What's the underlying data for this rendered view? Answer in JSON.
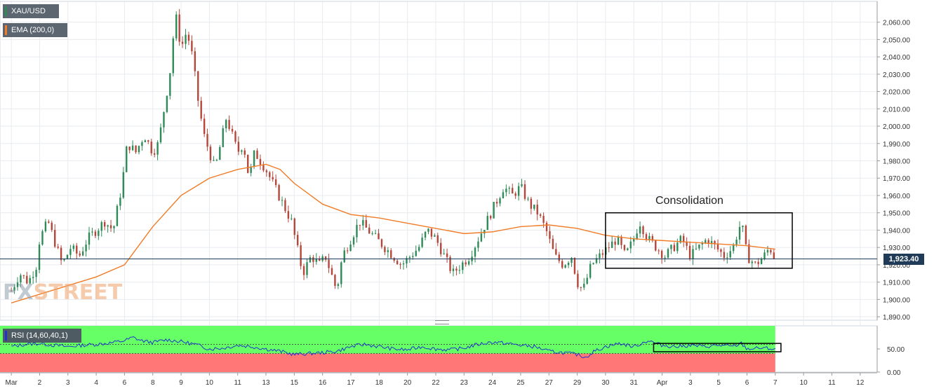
{
  "chart_data": {
    "type": "candlestick",
    "symbol": "XAU/USD",
    "indicator": "EMA (200,0)",
    "annotation": "Consolidation",
    "last_price": "1,923.40",
    "ylim": [
      1888,
      2072
    ],
    "y_ticks": [
      "1,890.00",
      "1,900.00",
      "1,910.00",
      "1,920.00",
      "1,930.00",
      "1,940.00",
      "1,950.00",
      "1,960.00",
      "1,970.00",
      "1,980.00",
      "1,990.00",
      "2,000.00",
      "2,010.00",
      "2,020.00",
      "2,030.00",
      "2,040.00",
      "2,050.00",
      "2,060.00"
    ],
    "x_ticks": [
      "Mar",
      "2",
      "3",
      "4",
      "6",
      "8",
      "9",
      "10",
      "11",
      "13",
      "15",
      "16",
      "17",
      "18",
      "20",
      "22",
      "23",
      "24",
      "25",
      "27",
      "29",
      "30",
      "31",
      "Apr",
      "3",
      "5",
      "6",
      "7",
      "10",
      "11",
      "12"
    ],
    "x_tick_values": [
      0,
      1,
      2,
      3,
      4,
      5,
      6,
      7,
      8,
      9,
      10,
      11,
      12,
      13,
      14,
      15,
      16,
      17,
      18,
      19,
      20,
      21,
      22,
      23,
      24,
      25,
      26,
      27,
      28,
      29,
      30
    ],
    "data_end": 27,
    "price_path": [
      [
        0.0,
        1905
      ],
      [
        0.3,
        1915
      ],
      [
        0.6,
        1910
      ],
      [
        0.9,
        1920
      ],
      [
        1.0,
        1935
      ],
      [
        1.3,
        1945
      ],
      [
        1.5,
        1935
      ],
      [
        1.8,
        1920
      ],
      [
        2.1,
        1930
      ],
      [
        2.4,
        1925
      ],
      [
        2.7,
        1935
      ],
      [
        3.0,
        1940
      ],
      [
        3.3,
        1945
      ],
      [
        3.6,
        1940
      ],
      [
        3.9,
        1965
      ],
      [
        4.1,
        1990
      ],
      [
        4.4,
        1985
      ],
      [
        4.7,
        1995
      ],
      [
        5.0,
        1985
      ],
      [
        5.2,
        1990
      ],
      [
        5.4,
        2010
      ],
      [
        5.6,
        2030
      ],
      [
        5.8,
        2065
      ],
      [
        6.0,
        2045
      ],
      [
        6.2,
        2055
      ],
      [
        6.4,
        2040
      ],
      [
        6.6,
        2015
      ],
      [
        6.8,
        1995
      ],
      [
        7.0,
        1985
      ],
      [
        7.2,
        1975
      ],
      [
        7.4,
        1990
      ],
      [
        7.6,
        2005
      ],
      [
        7.8,
        1995
      ],
      [
        8.0,
        1985
      ],
      [
        8.2,
        1990
      ],
      [
        8.4,
        1970
      ],
      [
        8.6,
        1985
      ],
      [
        8.8,
        1980
      ],
      [
        9.0,
        1975
      ],
      [
        9.3,
        1965
      ],
      [
        9.6,
        1955
      ],
      [
        9.9,
        1945
      ],
      [
        10.1,
        1930
      ],
      [
        10.3,
        1915
      ],
      [
        10.6,
        1925
      ],
      [
        10.9,
        1920
      ],
      [
        11.1,
        1925
      ],
      [
        11.3,
        1915
      ],
      [
        11.5,
        1905
      ],
      [
        11.7,
        1925
      ],
      [
        12.0,
        1935
      ],
      [
        12.3,
        1945
      ],
      [
        12.6,
        1940
      ],
      [
        12.9,
        1935
      ],
      [
        13.2,
        1930
      ],
      [
        13.5,
        1925
      ],
      [
        13.8,
        1920
      ],
      [
        14.1,
        1925
      ],
      [
        14.4,
        1930
      ],
      [
        14.7,
        1940
      ],
      [
        15.0,
        1935
      ],
      [
        15.3,
        1925
      ],
      [
        15.6,
        1915
      ],
      [
        15.9,
        1920
      ],
      [
        16.2,
        1925
      ],
      [
        16.5,
        1935
      ],
      [
        16.8,
        1945
      ],
      [
        17.1,
        1955
      ],
      [
        17.4,
        1965
      ],
      [
        17.7,
        1960
      ],
      [
        18.0,
        1965
      ],
      [
        18.3,
        1955
      ],
      [
        18.6,
        1950
      ],
      [
        18.9,
        1940
      ],
      [
        19.2,
        1925
      ],
      [
        19.5,
        1920
      ],
      [
        19.8,
        1925
      ],
      [
        20.0,
        1910
      ],
      [
        20.2,
        1905
      ],
      [
        20.5,
        1920
      ],
      [
        20.8,
        1925
      ],
      [
        21.1,
        1930
      ],
      [
        21.4,
        1935
      ],
      [
        21.7,
        1925
      ],
      [
        22.0,
        1935
      ],
      [
        22.2,
        1945
      ],
      [
        22.5,
        1935
      ],
      [
        22.8,
        1930
      ],
      [
        23.1,
        1925
      ],
      [
        23.4,
        1930
      ],
      [
        23.7,
        1935
      ],
      [
        24.0,
        1925
      ],
      [
        24.3,
        1930
      ],
      [
        24.6,
        1935
      ],
      [
        24.9,
        1930
      ],
      [
        25.2,
        1925
      ],
      [
        25.5,
        1930
      ],
      [
        25.8,
        1945
      ],
      [
        26.0,
        1925
      ],
      [
        26.3,
        1920
      ],
      [
        26.6,
        1925
      ],
      [
        26.8,
        1930
      ],
      [
        27.0,
        1923.4
      ]
    ],
    "ema_path": [
      [
        0.0,
        1898
      ],
      [
        1.0,
        1903
      ],
      [
        2.0,
        1908
      ],
      [
        3.0,
        1913
      ],
      [
        4.0,
        1920
      ],
      [
        5.0,
        1942
      ],
      [
        6.0,
        1960
      ],
      [
        7.0,
        1970
      ],
      [
        8.0,
        1975
      ],
      [
        9.0,
        1978
      ],
      [
        9.5,
        1975
      ],
      [
        10.0,
        1967
      ],
      [
        11.0,
        1955
      ],
      [
        12.0,
        1949
      ],
      [
        13.0,
        1947
      ],
      [
        14.0,
        1944
      ],
      [
        15.0,
        1941
      ],
      [
        16.0,
        1938
      ],
      [
        17.0,
        1939
      ],
      [
        18.0,
        1942
      ],
      [
        19.0,
        1943
      ],
      [
        20.0,
        1941
      ],
      [
        21.0,
        1937
      ],
      [
        22.0,
        1935
      ],
      [
        23.0,
        1934
      ],
      [
        24.0,
        1933
      ],
      [
        25.0,
        1932
      ],
      [
        26.0,
        1931
      ],
      [
        27.0,
        1929
      ]
    ],
    "consolidation_box": {
      "x_start": 21.0,
      "x_end": 27.6,
      "y_high": 1950,
      "y_low": 1918
    },
    "rsi": {
      "label": "RSI (14,60,40,1)",
      "ylim": [
        0,
        100
      ],
      "y_ticks": [
        "0.00",
        "50.00"
      ],
      "overbought": 60,
      "oversold": 40,
      "upper_zone_color": "#66ff66",
      "lower_zone_color": "#ff7777",
      "path": [
        [
          0.0,
          55
        ],
        [
          0.5,
          60
        ],
        [
          1.0,
          62
        ],
        [
          1.5,
          58
        ],
        [
          2.0,
          55
        ],
        [
          2.5,
          58
        ],
        [
          3.0,
          60
        ],
        [
          3.5,
          63
        ],
        [
          4.0,
          68
        ],
        [
          4.3,
          75
        ],
        [
          4.6,
          68
        ],
        [
          5.0,
          64
        ],
        [
          5.5,
          70
        ],
        [
          6.0,
          66
        ],
        [
          6.5,
          60
        ],
        [
          7.0,
          50
        ],
        [
          7.5,
          52
        ],
        [
          8.0,
          58
        ],
        [
          8.5,
          55
        ],
        [
          9.0,
          50
        ],
        [
          9.5,
          45
        ],
        [
          10.0,
          38
        ],
        [
          10.5,
          40
        ],
        [
          11.0,
          42
        ],
        [
          11.5,
          45
        ],
        [
          12.0,
          55
        ],
        [
          12.5,
          60
        ],
        [
          13.0,
          55
        ],
        [
          13.5,
          50
        ],
        [
          14.0,
          48
        ],
        [
          14.5,
          55
        ],
        [
          15.0,
          50
        ],
        [
          15.5,
          48
        ],
        [
          16.0,
          52
        ],
        [
          16.5,
          60
        ],
        [
          17.0,
          65
        ],
        [
          17.5,
          62
        ],
        [
          18.0,
          58
        ],
        [
          18.5,
          55
        ],
        [
          19.0,
          45
        ],
        [
          19.5,
          42
        ],
        [
          20.0,
          38
        ],
        [
          20.3,
          32
        ],
        [
          20.6,
          45
        ],
        [
          21.0,
          55
        ],
        [
          21.5,
          62
        ],
        [
          22.0,
          55
        ],
        [
          22.5,
          68
        ],
        [
          23.0,
          58
        ],
        [
          23.5,
          55
        ],
        [
          24.0,
          58
        ],
        [
          24.5,
          55
        ],
        [
          25.0,
          58
        ],
        [
          25.5,
          55
        ],
        [
          25.8,
          62
        ],
        [
          26.0,
          50
        ],
        [
          26.5,
          52
        ],
        [
          27.0,
          50
        ]
      ],
      "box": {
        "x_start": 22.7,
        "x_end": 27.2,
        "y_high": 62,
        "y_low": 44
      }
    }
  },
  "colors": {
    "candle_up": "#2e8b57",
    "candle_down": "#b5463a",
    "ema": "#f07c28",
    "rsi_line": "#2233cc",
    "price_line": "#1f3b57",
    "grid": "#e8ebef",
    "axis_text": "#333333"
  },
  "watermark": {
    "fx": "FX",
    "street": "STREET"
  }
}
